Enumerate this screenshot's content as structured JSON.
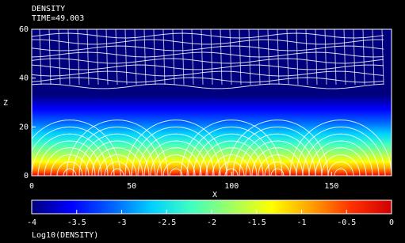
{
  "chart_data": {
    "type": "heatmap",
    "title": "DENSITY",
    "subtitle": "TIME=49.003",
    "xlabel": "X",
    "ylabel": "Z",
    "xlim": [
      0,
      180
    ],
    "xticks": [
      0,
      50,
      100,
      150
    ],
    "ylim": [
      0,
      60
    ],
    "yticks": [
      0,
      20,
      40,
      60
    ],
    "colorbar": {
      "label": "Log10(DENSITY)",
      "lim": [
        -4,
        0
      ],
      "ticks": [
        -4,
        -3.5,
        -3,
        -2.5,
        -2,
        -1.5,
        -1,
        -0.5,
        0
      ],
      "colormap": [
        "#00007f",
        "#0000ff",
        "#0060ff",
        "#00d0ff",
        "#40ffc0",
        "#a0ff60",
        "#ffff00",
        "#ffa000",
        "#ff3000",
        "#d00000"
      ]
    }
  }
}
